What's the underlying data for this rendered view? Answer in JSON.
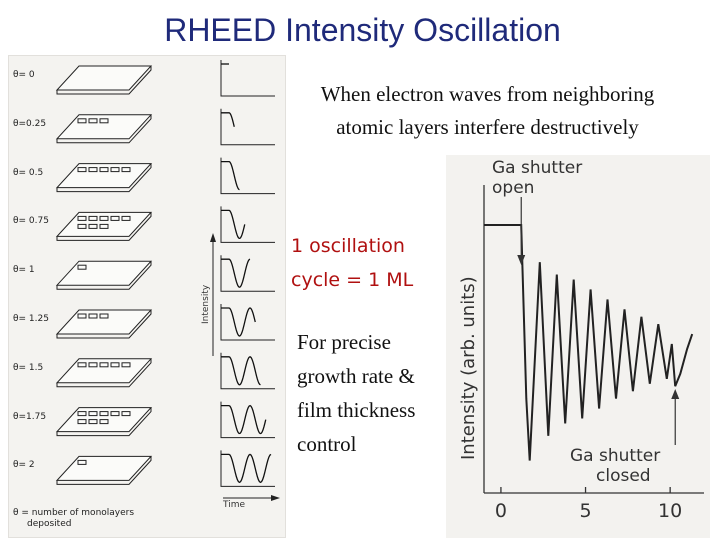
{
  "title": "RHEED Intensity Oscillation",
  "intro": {
    "line1": "When electron waves from neighboring",
    "line2": "atomic layers interfere destructively"
  },
  "cycle": {
    "line1": "1 oscillation",
    "line2": "cycle = 1 ML"
  },
  "precise": {
    "line1": "For precise",
    "line2": "growth rate &",
    "line3": "film thickness",
    "line4": "control"
  },
  "figure": {
    "stages": [
      "θ= 0",
      "θ=0.25",
      "θ= 0.5",
      "θ= 0.75",
      "θ= 1",
      "θ= 1.25",
      "θ= 1.5",
      "θ=1.75",
      "θ= 2"
    ],
    "footnote_1": "θ = number of monolayers",
    "footnote_2": "deposited",
    "intensity_label": "Intensity",
    "time_label": "Time"
  },
  "chart_data": {
    "type": "line",
    "ylabel": "Intensity (arb. units)",
    "xlabel": "",
    "x_ticks": [
      0,
      5,
      10
    ],
    "xlim": [
      -1,
      12
    ],
    "annotations": [
      {
        "label": "Ga shutter open",
        "x": 1.2
      },
      {
        "label": "Ga shutter closed",
        "x": 10.3
      }
    ],
    "series": [
      {
        "x": [
          -1,
          0.5,
          1.2,
          1.5,
          1.7,
          2.3,
          2.8,
          3.3,
          3.8,
          4.3,
          4.8,
          5.3,
          5.8,
          6.3,
          6.8,
          7.3,
          7.8,
          8.3,
          8.8,
          9.3,
          9.8,
          10.1,
          10.3,
          10.6,
          11.0,
          11.3
        ],
        "y": [
          1.0,
          1.0,
          1.0,
          0.3,
          0.05,
          0.85,
          0.15,
          0.8,
          0.2,
          0.78,
          0.22,
          0.74,
          0.26,
          0.7,
          0.3,
          0.66,
          0.33,
          0.63,
          0.36,
          0.6,
          0.38,
          0.52,
          0.35,
          0.4,
          0.5,
          0.56
        ]
      }
    ]
  }
}
